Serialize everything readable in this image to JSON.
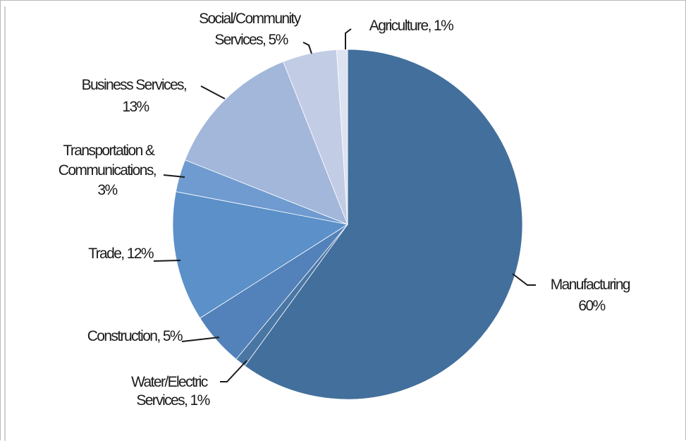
{
  "chart_data": {
    "type": "pie",
    "title": "",
    "start_angle_deg": 0,
    "direction": "clockwise",
    "slices": [
      {
        "name": "Manufacturing",
        "value": 60,
        "label_lines": [
          "Manufacturing",
          "60%"
        ],
        "color": "#436f9c"
      },
      {
        "name": "Water/Electric Services",
        "value": 1,
        "label_lines": [
          "Water/Electric",
          "Services, 1%"
        ],
        "color": "#4a76a4"
      },
      {
        "name": "Construction",
        "value": 5,
        "label_lines": [
          "Construction, 5%"
        ],
        "color": "#5282b9"
      },
      {
        "name": "Trade",
        "value": 12,
        "label_lines": [
          "Trade, 12%"
        ],
        "color": "#5b90c8"
      },
      {
        "name": "Transportation & Communications",
        "value": 3,
        "label_lines": [
          "Transportation &",
          "Communications,",
          "3%"
        ],
        "color": "#6f9bd0"
      },
      {
        "name": "Business Services",
        "value": 13,
        "label_lines": [
          "Business Services,",
          "13%"
        ],
        "color": "#a2b7da"
      },
      {
        "name": "Social/Community Services",
        "value": 5,
        "label_lines": [
          "Social/Community",
          "Services, 5%"
        ],
        "color": "#c2cde5"
      },
      {
        "name": "Agriculture",
        "value": 1,
        "label_lines": [
          "Agriculture, 1%"
        ],
        "color": "#dde3f0"
      }
    ]
  }
}
